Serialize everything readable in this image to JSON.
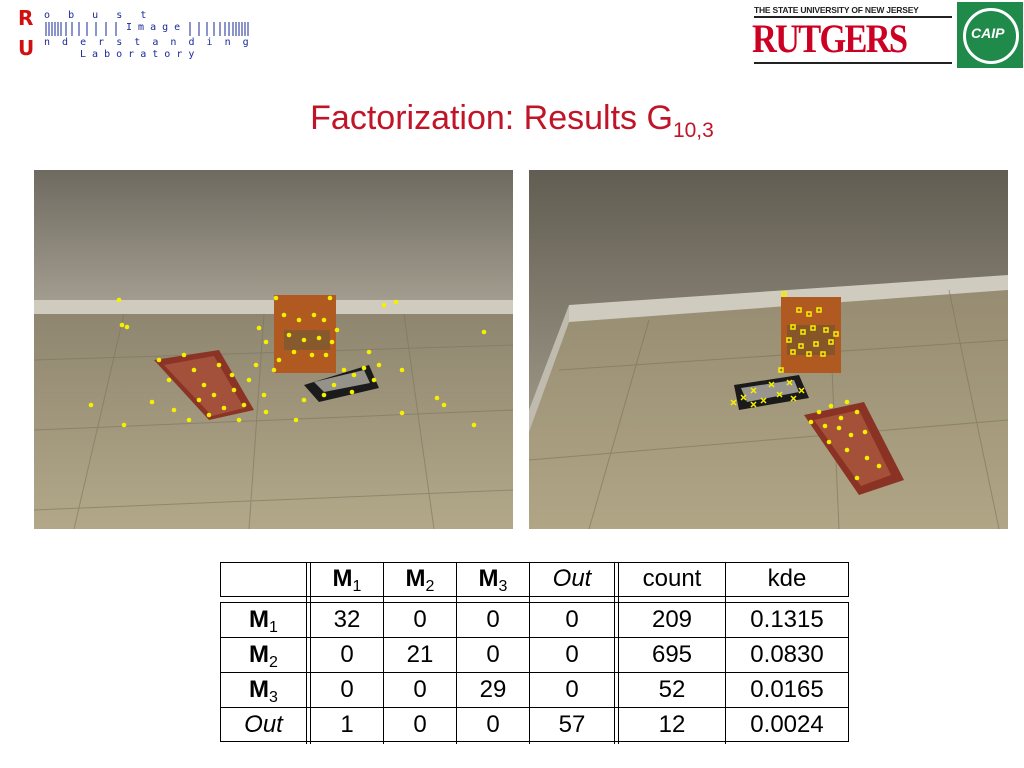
{
  "lab_logo": {
    "big_r": "R",
    "big_u": "U",
    "row1": "o   b   u   s   t",
    "row2": "n  d  e  r  s  t  a  n  d  i  n  g",
    "row3": "L a b o r a t o r y",
    "image_word": "I m a g e"
  },
  "rutgers_logo": {
    "tagline": "THE STATE UNIVERSITY OF NEW JERSEY",
    "name": "RUTGERS",
    "badge": "CAIP",
    "accent": "#cc0022",
    "badge_color": "#1f8a4a"
  },
  "title": {
    "text": "Factorization: Results  G",
    "subscript": "10,3",
    "color": "#c01428"
  },
  "images": {
    "left": {
      "marker": "yellow-dot",
      "marker_color": "#f5f000"
    },
    "right": {
      "marker": "yellow-square-and-cross",
      "marker_color": "#f5f000"
    }
  },
  "table": {
    "columns": [
      {
        "label": "M",
        "sub": "1",
        "style": "bold"
      },
      {
        "label": "M",
        "sub": "2",
        "style": "bold"
      },
      {
        "label": "M",
        "sub": "3",
        "style": "bold"
      },
      {
        "label": "Out",
        "sub": "",
        "style": "italic"
      },
      {
        "label": "count",
        "sub": "",
        "style": "plain"
      },
      {
        "label": "kde",
        "sub": "",
        "style": "plain"
      }
    ],
    "rows": [
      {
        "label": "M",
        "sub": "1",
        "style": "bold",
        "cells": [
          "32",
          "0",
          "0",
          "0",
          "209",
          "0.1315"
        ]
      },
      {
        "label": "M",
        "sub": "2",
        "style": "bold",
        "cells": [
          "0",
          "21",
          "0",
          "0",
          "695",
          "0.0830"
        ]
      },
      {
        "label": "M",
        "sub": "3",
        "style": "bold",
        "cells": [
          "0",
          "0",
          "29",
          "0",
          "52",
          "0.0165"
        ]
      },
      {
        "label": "Out",
        "sub": "",
        "style": "italic",
        "cells": [
          "1",
          "0",
          "0",
          "57",
          "12",
          "0.0024"
        ]
      }
    ]
  }
}
